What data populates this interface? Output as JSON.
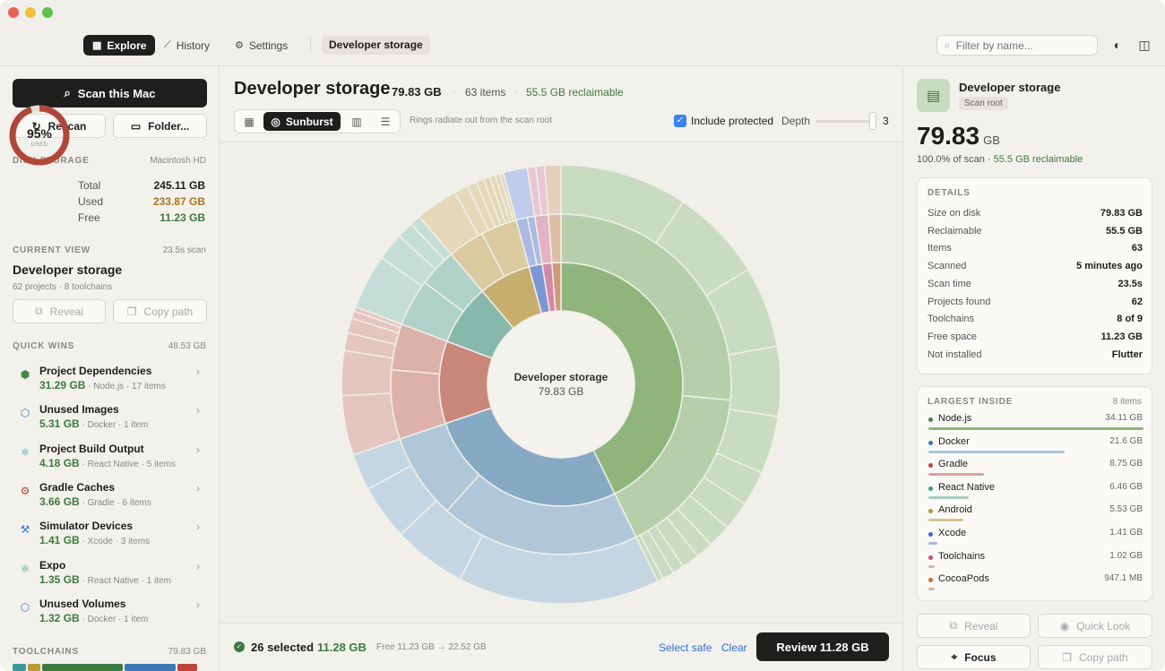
{
  "toolbar": {
    "nav": [
      {
        "label": "Explore",
        "icon": "grid-icon"
      },
      {
        "label": "History",
        "icon": "chart-line-icon"
      },
      {
        "label": "Settings",
        "icon": "gear-icon"
      }
    ],
    "breadcrumb": "Developer storage",
    "search_placeholder": "Filter by name..."
  },
  "sidebar": {
    "scan_label": "Scan this Mac",
    "rescan_label": "Rescan",
    "folder_label": "Folder...",
    "disk": {
      "label": "DISK STORAGE",
      "volume": "Macintosh HD",
      "percent": "95%",
      "used_word": "USED",
      "used_fraction": 0.95,
      "rows": [
        {
          "k": "Total",
          "v": "245.11 GB"
        },
        {
          "k": "Used",
          "v": "233.87 GB"
        },
        {
          "k": "Free",
          "v": "11.23 GB"
        }
      ]
    },
    "current": {
      "label": "CURRENT VIEW",
      "time": "23.5s scan",
      "title": "Developer storage",
      "sub": "62 projects · 8 toolchains",
      "reveal": "Reveal",
      "copy": "Copy path"
    },
    "quick_wins": {
      "label": "QUICK WINS",
      "total": "48.53 GB",
      "items": [
        {
          "name": "Project Dependencies",
          "size": "31.29 GB",
          "meta": "· Node.js · 17 items",
          "icon": "node-icon",
          "color": "#3e8a3e"
        },
        {
          "name": "Unused Images",
          "size": "5.31 GB",
          "meta": "· Docker · 1 item",
          "icon": "cube-icon",
          "color": "#3a78b8"
        },
        {
          "name": "Project Build Output",
          "size": "4.18 GB",
          "meta": "· React Native · 5 items",
          "icon": "atom-icon",
          "color": "#3a9a9a"
        },
        {
          "name": "Gradle Caches",
          "size": "3.66 GB",
          "meta": "· Gradle · 6 items",
          "icon": "gears-icon",
          "color": "#c0443a"
        },
        {
          "name": "Simulator Devices",
          "size": "1.41 GB",
          "meta": "· Xcode · 3 items",
          "icon": "hammer-icon",
          "color": "#3a78d0"
        },
        {
          "name": "Expo",
          "size": "1.35 GB",
          "meta": "· React Native · 1 item",
          "icon": "atom-icon",
          "color": "#3a9a9a"
        },
        {
          "name": "Unused Volumes",
          "size": "1.32 GB",
          "meta": "· Docker · 1 item",
          "icon": "cube-icon",
          "color": "#3a78b8"
        }
      ]
    },
    "toolchains": {
      "label": "TOOLCHAINS",
      "total": "79.83 GB",
      "colors": [
        "#3a9a9a",
        "#b89a2e",
        "#3e7a3e",
        "#3a78b8",
        "#c0443a"
      ]
    }
  },
  "main": {
    "title": "Developer storage",
    "size": "79.83 GB",
    "items": "63 items",
    "reclaimable": "55.5 GB reclaimable",
    "views": [
      {
        "label": "",
        "icon": "grid-icon"
      },
      {
        "label": "Sunburst",
        "icon": "sunburst-icon"
      },
      {
        "label": "",
        "icon": "bars-icon"
      },
      {
        "label": "",
        "icon": "list-icon"
      }
    ],
    "hint": "Rings radiate out from the scan root",
    "include_protected": "Include protected",
    "depth_label": "Depth",
    "depth_value": "3",
    "center_name": "Developer storage",
    "center_size": "79.83 GB"
  },
  "chart_data": {
    "type": "sunburst",
    "root": "Developer storage",
    "ring1": [
      {
        "name": "Node.js",
        "value": 34.11,
        "color": "#8fb57c"
      },
      {
        "name": "Docker",
        "value": 21.6,
        "color": "#86a9c4"
      },
      {
        "name": "Gradle",
        "value": 8.75,
        "color": "#c9877a"
      },
      {
        "name": "React Native",
        "value": 6.46,
        "color": "#86b8ab"
      },
      {
        "name": "Android",
        "value": 5.53,
        "color": "#c7ae6c"
      },
      {
        "name": "Xcode",
        "value": 1.41,
        "color": "#7c95d6"
      },
      {
        "name": "Toolchains",
        "value": 1.02,
        "color": "#d488a5"
      },
      {
        "name": "CocoaPods",
        "value": 0.947,
        "color": "#cc9a78"
      }
    ]
  },
  "footer": {
    "selected": "26 selected",
    "selected_size": "11.28 GB",
    "free_change": "Free 11.23 GB → 22.52 GB",
    "select_safe": "Select safe",
    "clear": "Clear",
    "review": "Review 11.28 GB"
  },
  "inspector": {
    "name": "Developer storage",
    "tag": "Scan root",
    "big": "79.83",
    "unit": "GB",
    "pct": "100.0% of scan ·",
    "recl": "55.5 GB reclaimable",
    "details_label": "DETAILS",
    "details": [
      {
        "k": "Size on disk",
        "v": "79.83 GB"
      },
      {
        "k": "Reclaimable",
        "v": "55.5 GB"
      },
      {
        "k": "Items",
        "v": "63"
      },
      {
        "k": "Scanned",
        "v": "5 minutes ago"
      },
      {
        "k": "Scan time",
        "v": "23.5s"
      },
      {
        "k": "Projects found",
        "v": "62"
      },
      {
        "k": "Toolchains",
        "v": "8 of 9"
      },
      {
        "k": "Free space",
        "v": "11.23 GB"
      },
      {
        "k": "Not installed",
        "v": "Flutter"
      }
    ],
    "largest_label": "LARGEST INSIDE",
    "largest_count": "8 items",
    "largest": [
      {
        "n": "Node.js",
        "s": "34.11 GB",
        "frac": 1.0,
        "c": "#8fb57c",
        "d": "#3e8a3e"
      },
      {
        "n": "Docker",
        "s": "21.6 GB",
        "frac": 0.633,
        "c": "#a9c3d8",
        "d": "#3a78b8"
      },
      {
        "n": "Gradle",
        "s": "8.75 GB",
        "frac": 0.257,
        "c": "#d9a49a",
        "d": "#c0443a"
      },
      {
        "n": "React Native",
        "s": "6.46 GB",
        "frac": 0.189,
        "c": "#a3cbc0",
        "d": "#3a9a9a"
      },
      {
        "n": "Android",
        "s": "5.53 GB",
        "frac": 0.162,
        "c": "#d8c28a",
        "d": "#b89a2e"
      },
      {
        "n": "Xcode",
        "s": "1.41 GB",
        "frac": 0.041,
        "c": "#a6b6e0",
        "d": "#3a6ad0"
      },
      {
        "n": "Toolchains",
        "s": "1.02 GB",
        "frac": 0.03,
        "c": "#e3a8bf",
        "d": "#c0507a"
      },
      {
        "n": "CocoaPods",
        "s": "947.1 MB",
        "frac": 0.028,
        "c": "#ddb293",
        "d": "#c0703a"
      }
    ],
    "reveal": "Reveal",
    "quicklook": "Quick Look",
    "focus": "Focus",
    "copy": "Copy path"
  }
}
